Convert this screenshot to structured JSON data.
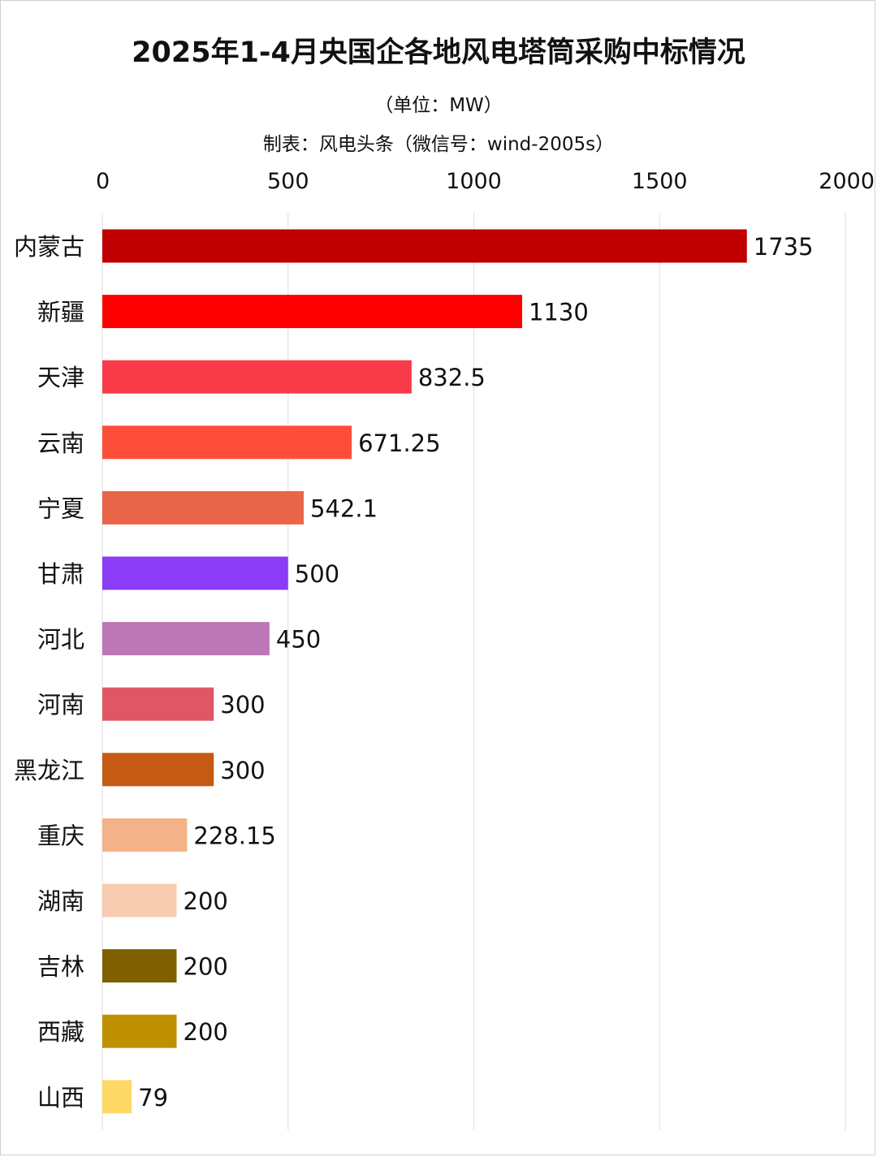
{
  "chart_data": {
    "type": "bar",
    "orientation": "horizontal",
    "title": "2025年1-4月央国企各地风电塔筒采购中标情况",
    "subtitle": "（单位：MW）",
    "credit": "制表：风电头条（微信号：wind-2005s）",
    "xlim": [
      0,
      2000
    ],
    "x_ticks": [
      "0",
      "500",
      "1000",
      "1500",
      "2000"
    ],
    "x_axis_position": "top",
    "grid": "vertical",
    "legend": "none",
    "categories": [
      "内蒙古",
      "新疆",
      "天津",
      "云南",
      "宁夏",
      "甘肃",
      "河北",
      "河南",
      "黑龙江",
      "重庆",
      "湖南",
      "吉林",
      "西藏",
      "山西"
    ],
    "values": [
      1735,
      1130,
      832.5,
      671.25,
      542.1,
      500,
      450,
      300,
      300,
      228.15,
      200,
      200,
      200,
      79
    ],
    "value_labels": [
      "1735",
      "1130",
      "832.5",
      "671.25",
      "542.1",
      "500",
      "450",
      "300",
      "300",
      "228.15",
      "200",
      "200",
      "200",
      "79"
    ],
    "colors": [
      "#c00000",
      "#ff0000",
      "#f93b49",
      "#fe4d38",
      "#e96549",
      "#8a3cf6",
      "#bb77b6",
      "#df5765",
      "#c45a14",
      "#f3b287",
      "#f8ccb0",
      "#7e6000",
      "#bf9000",
      "#ffd966"
    ]
  }
}
